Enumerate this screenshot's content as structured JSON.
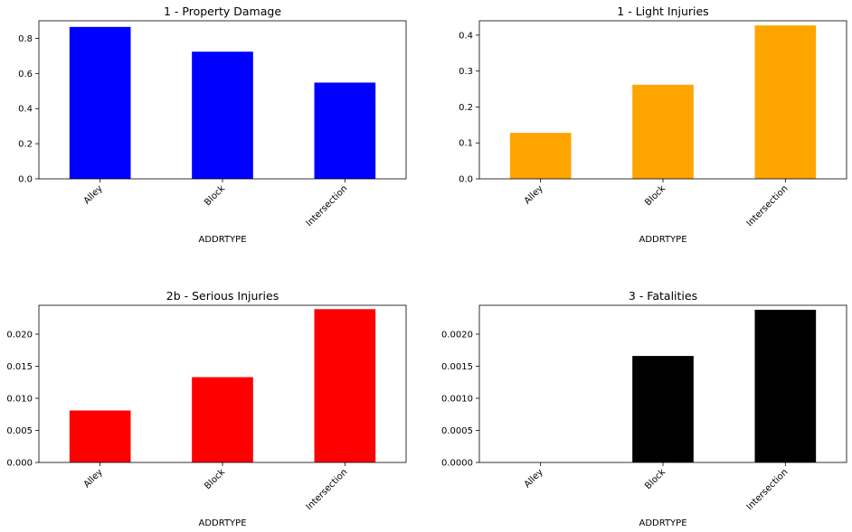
{
  "chart_data": [
    {
      "type": "bar",
      "title": "1 - Property Damage",
      "xlabel": "ADDRTYPE",
      "ylabel": "",
      "categories": [
        "Alley",
        "Block",
        "Intersection"
      ],
      "values": [
        0.865,
        0.724,
        0.548
      ],
      "ylim": [
        0,
        0.9
      ],
      "yticks": [
        "0.0",
        "0.2",
        "0.4",
        "0.6",
        "0.8"
      ],
      "ytick_values": [
        0,
        0.2,
        0.4,
        0.6,
        0.8
      ],
      "color": "#0000ff",
      "grid": false
    },
    {
      "type": "bar",
      "title": "1 - Light Injuries",
      "xlabel": "ADDRTYPE",
      "ylabel": "",
      "categories": [
        "Alley",
        "Block",
        "Intersection"
      ],
      "values": [
        0.128,
        0.262,
        0.427
      ],
      "ylim": [
        0,
        0.44
      ],
      "yticks": [
        "0.0",
        "0.1",
        "0.2",
        "0.3",
        "0.4"
      ],
      "ytick_values": [
        0,
        0.1,
        0.2,
        0.3,
        0.4
      ],
      "color": "#ffa500",
      "grid": false
    },
    {
      "type": "bar",
      "title": "2b - Serious Injuries",
      "xlabel": "ADDRTYPE",
      "ylabel": "",
      "categories": [
        "Alley",
        "Block",
        "Intersection"
      ],
      "values": [
        0.0081,
        0.0133,
        0.0239
      ],
      "ylim": [
        0,
        0.0245
      ],
      "yticks": [
        "0.000",
        "0.005",
        "0.010",
        "0.015",
        "0.020"
      ],
      "ytick_values": [
        0,
        0.005,
        0.01,
        0.015,
        0.02
      ],
      "color": "#ff0000",
      "grid": false
    },
    {
      "type": "bar",
      "title": "3 - Fatalities",
      "xlabel": "ADDRTYPE",
      "ylabel": "",
      "categories": [
        "Alley",
        "Block",
        "Intersection"
      ],
      "values": [
        0,
        0.00166,
        0.00238
      ],
      "ylim": [
        0,
        0.00245
      ],
      "yticks": [
        "0.0000",
        "0.0005",
        "0.0010",
        "0.0015",
        "0.0020"
      ],
      "ytick_values": [
        0,
        0.0005,
        0.001,
        0.0015,
        0.002
      ],
      "color": "#000000",
      "grid": false
    }
  ]
}
